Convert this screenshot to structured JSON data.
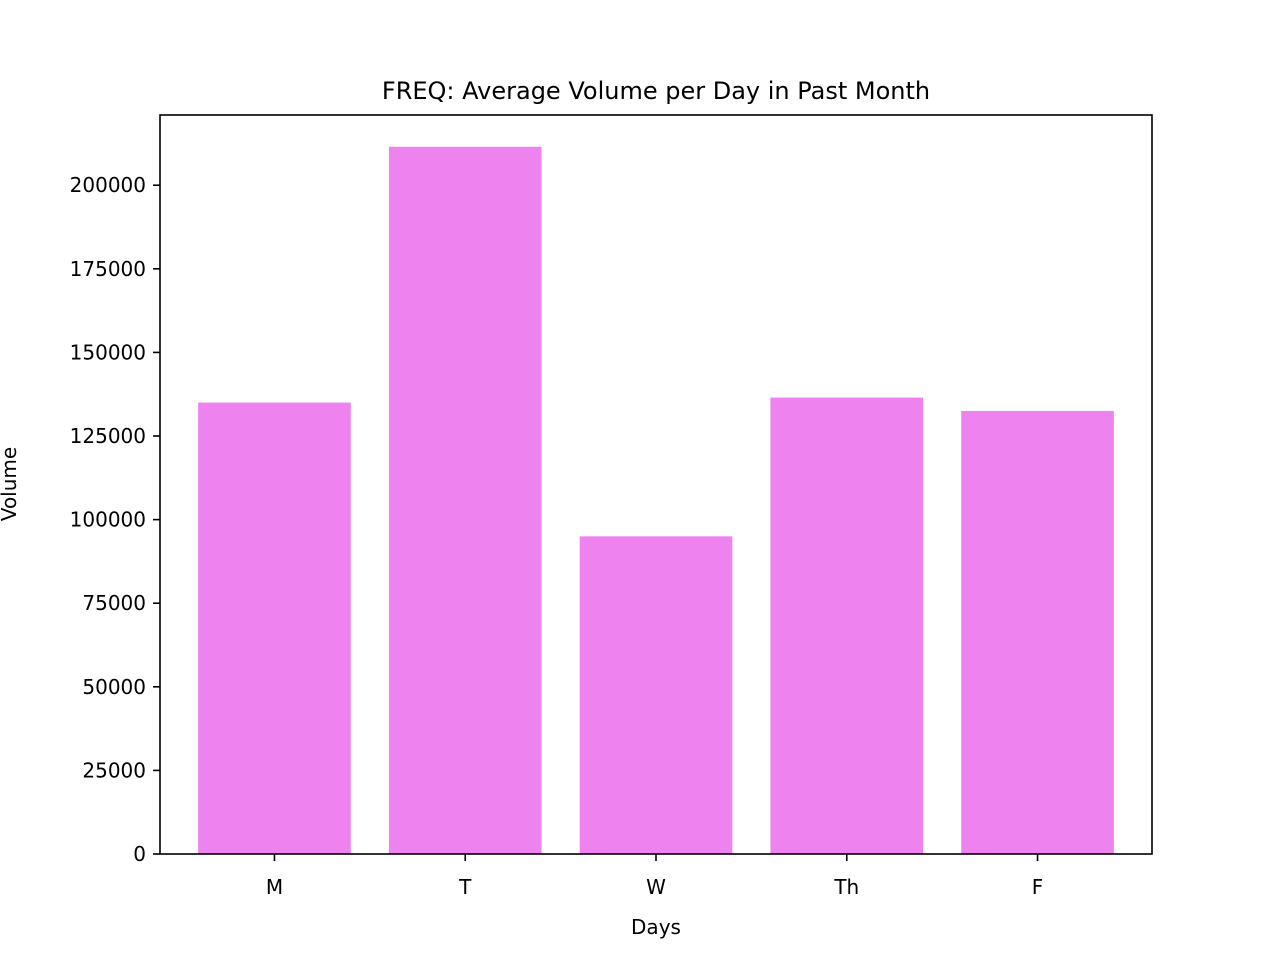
{
  "chart_data": {
    "type": "bar",
    "title": "FREQ: Average Volume per Day in Past Month",
    "xlabel": "Days",
    "ylabel": "Volume",
    "categories": [
      "M",
      "T",
      "W",
      "Th",
      "F"
    ],
    "values": [
      135000,
      211500,
      95000,
      136500,
      132500
    ],
    "ylim": [
      0,
      221000
    ],
    "yticks": [
      0,
      25000,
      50000,
      75000,
      100000,
      125000,
      150000,
      175000,
      200000
    ],
    "ytick_labels": [
      "0",
      "25000",
      "50000",
      "75000",
      "100000",
      "125000",
      "150000",
      "175000",
      "200000"
    ],
    "grid": false,
    "legend": "none",
    "colors": {
      "bar": "#ee82ee",
      "axes": "#000000",
      "background": "#ffffff"
    }
  }
}
